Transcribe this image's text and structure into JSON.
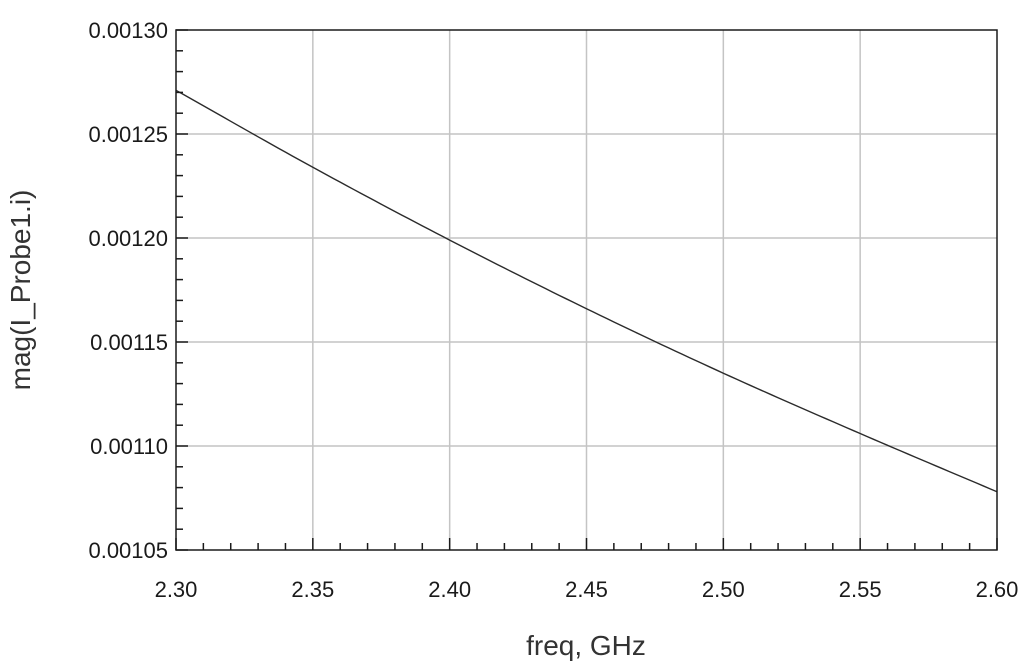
{
  "chart_data": {
    "type": "line",
    "title": "",
    "xlabel": "freq, GHz",
    "ylabel": "mag(I_Probe1.i)",
    "xlim": [
      2.3,
      2.6
    ],
    "ylim": [
      0.00105,
      0.0013
    ],
    "x_ticks": [
      "2.30",
      "2.35",
      "2.40",
      "2.45",
      "2.50",
      "2.55",
      "2.60"
    ],
    "y_ticks": [
      "0.00105",
      "0.00110",
      "0.00115",
      "0.00120",
      "0.00125",
      "0.00130"
    ],
    "x_minor_per_major": 5,
    "y_minor_per_major": 5,
    "grid": true,
    "series": [
      {
        "color": "#2b2b2b",
        "x": [
          2.3,
          2.35,
          2.4,
          2.45,
          2.5,
          2.55,
          2.6
        ],
        "y": [
          0.001271,
          0.001234,
          0.001199,
          0.001166,
          0.001135,
          0.001106,
          0.001078
        ]
      }
    ]
  }
}
